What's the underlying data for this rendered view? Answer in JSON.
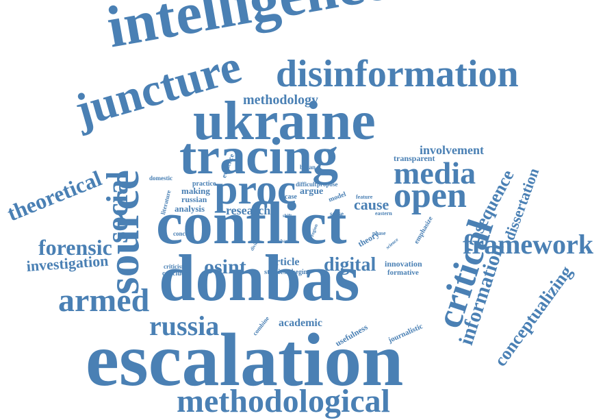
{
  "word_color": "#4a80b4",
  "background": "#ffffff",
  "words": {
    "intelligence": "intelligence",
    "juncture": "juncture",
    "disinformation": "disinformation",
    "methodology": "methodology",
    "ukraine": "ukraine",
    "tracing": "tracing",
    "source": "source",
    "theoretical": "theoretical",
    "social": "social",
    "media": "media",
    "open": "open",
    "proc": "proc",
    "conflict": "conflict",
    "critical": "critical",
    "framework": "framework",
    "forensic": "forensic",
    "investigation": "investigation",
    "armed": "armed",
    "donbas": "donbas",
    "osint": "osint",
    "russia": "russia",
    "escalation": "escalation",
    "methodological": "methodological",
    "digital": "digital",
    "information": "information",
    "conceptualizing": "conceptualizing",
    "sequence": "sequence",
    "dissertation": "dissertation",
    "involvement": "involvement",
    "transparent": "transparent",
    "research": "research",
    "cause": "cause",
    "article": "article",
    "studies": "studies",
    "begin": "begin",
    "innovation": "innovation",
    "formative": "formative",
    "academic": "academic",
    "usefulness": "usefulness",
    "journalistic": "journalistic",
    "combine": "combine",
    "analysis": "analysis",
    "russian": "russian",
    "making": "making",
    "practice": "practice",
    "domestic": "domestic",
    "literature": "literature",
    "evidence": "evidence",
    "began": "began",
    "difficult": "difficult",
    "propose": "propose",
    "argue": "argue",
    "case": "case",
    "model": "model",
    "feature": "feature",
    "eastern": "eastern",
    "sense": "sense",
    "theory": "theory",
    "phase": "phase",
    "science": "science",
    "emphasize": "emphasize",
    "concept": "concept",
    "criticism": "criticism",
    "conclude": "conclude",
    "divide": "divide",
    "band": "band",
    "region": "region",
    "study": "study",
    "shift": "shift"
  }
}
